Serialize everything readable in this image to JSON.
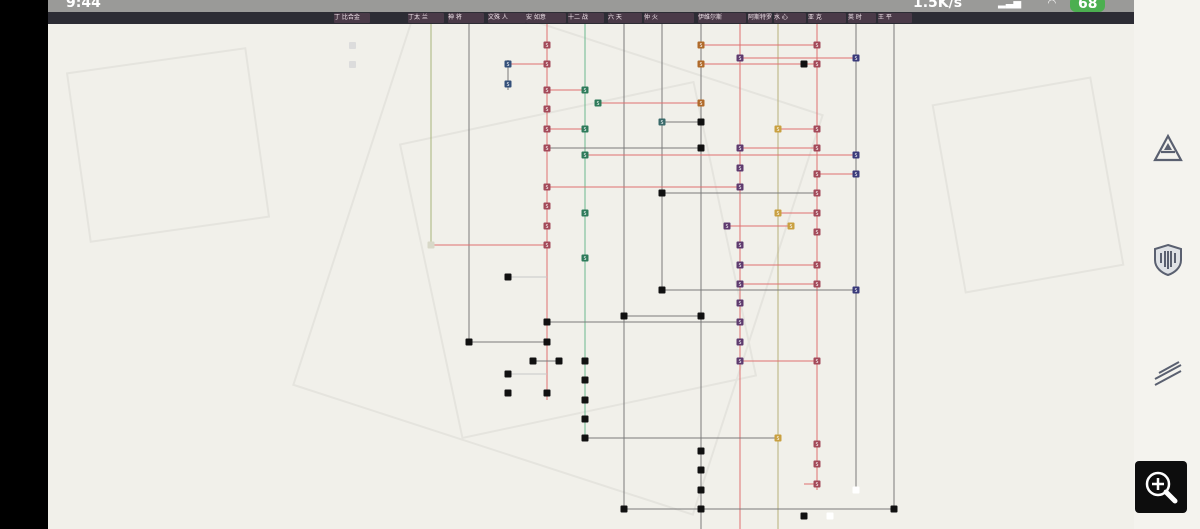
{
  "status_bar": {
    "time": "9:44",
    "network": "1.5K/s",
    "battery": "68"
  },
  "tabs": [
    {
      "label": "丁 比合金"
    },
    {
      "label": "丁太 兰"
    },
    {
      "label": "神 将 "
    },
    {
      "label": "文殊 人"
    },
    {
      "label": "安 如意"
    },
    {
      "label": "十二 战"
    },
    {
      "label": "六 天"
    },
    {
      "label": "仲 火 "
    },
    {
      "label": "伊维尔斯"
    },
    {
      "label": "阿斯特罗"
    },
    {
      "label": "水 心"
    },
    {
      "label": "亚 克"
    },
    {
      "label": "英 时"
    },
    {
      "label": "王 平"
    }
  ],
  "legend_items": [
    {
      "label": ""
    },
    {
      "label": ""
    }
  ],
  "side_tools": [
    {
      "name": "tool-triangle",
      "icon": "triangle-tier-icon"
    },
    {
      "name": "tool-shield",
      "icon": "shield-icon"
    },
    {
      "name": "tool-lines",
      "icon": "diagonal-lines-icon"
    }
  ],
  "zoom_button": {
    "icon": "zoom-in-icon"
  },
  "node_marker": "S",
  "colors": {
    "canvas": "#f1f0ea",
    "red_line": "#e07070",
    "grey_line": "#7a7a7a",
    "green_line": "#6bb88f",
    "node_red": "#a34a5a",
    "node_blue": "#34507a",
    "node_green": "#2e7a5a",
    "node_orange": "#b06a2a",
    "node_purple": "#5e3a6e",
    "node_navy": "#3a3a7a",
    "node_gold": "#c9a040",
    "node_black": "#111111"
  }
}
